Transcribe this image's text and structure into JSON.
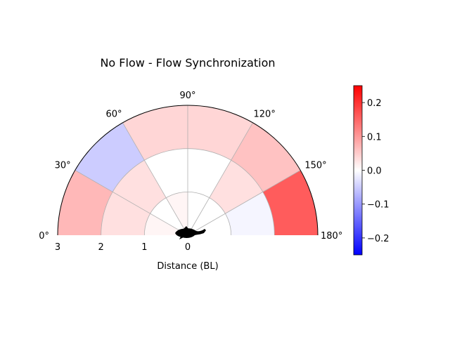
{
  "chart_data": {
    "type": "heatmap",
    "projection": "polar-semicircle",
    "title": "No Flow - Flow Synchronization",
    "xlabel": "Distance (BL)",
    "angle_ticks": [
      "0°",
      "30°",
      "60°",
      "90°",
      "120°",
      "150°",
      "180°"
    ],
    "angle_tick_values": [
      0,
      30,
      60,
      90,
      120,
      150,
      180
    ],
    "radius_ticks": [
      "3",
      "2",
      "1",
      "0"
    ],
    "radius_tick_values": [
      3,
      2,
      1,
      0
    ],
    "rlim": [
      0,
      3
    ],
    "angle_range": [
      0,
      180
    ],
    "grid": true,
    "angle_bins": [
      [
        0,
        30
      ],
      [
        30,
        60
      ],
      [
        60,
        90
      ],
      [
        90,
        120
      ],
      [
        120,
        150
      ],
      [
        150,
        180
      ]
    ],
    "radius_bins": [
      [
        0,
        1
      ],
      [
        1,
        2
      ],
      [
        2,
        3
      ]
    ],
    "values": [
      [
        0.01,
        0.0,
        0.01,
        0.0,
        0.0,
        0.0
      ],
      [
        0.03,
        0.03,
        0.0,
        0.0,
        0.03,
        -0.01
      ],
      [
        0.07,
        -0.05,
        0.04,
        0.04,
        0.06,
        0.16
      ]
    ],
    "colorbar": {
      "colormap": "bwr",
      "vmin": -0.25,
      "vmax": 0.25,
      "ticks": [
        0.2,
        0.1,
        0.0,
        -0.1,
        -0.2
      ],
      "tick_labels": [
        "0.2",
        "0.1",
        "0.0",
        "−0.1",
        "−0.2"
      ]
    },
    "center_marker": "fish-silhouette"
  }
}
